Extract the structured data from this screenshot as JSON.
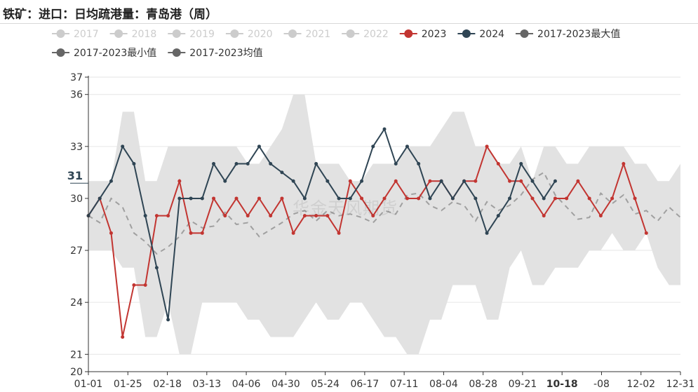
{
  "title": "铁矿：进口：日均疏港量：青岛港（周）",
  "watermark": "华金天风期货",
  "axis_pointer": {
    "y_label": "31",
    "x_label": "10-18"
  },
  "legend": [
    {
      "name": "2017",
      "color": "#cccccc",
      "active": false
    },
    {
      "name": "2018",
      "color": "#cccccc",
      "active": false
    },
    {
      "name": "2019",
      "color": "#cccccc",
      "active": false
    },
    {
      "name": "2020",
      "color": "#cccccc",
      "active": false
    },
    {
      "name": "2021",
      "color": "#cccccc",
      "active": false
    },
    {
      "name": "2022",
      "color": "#cccccc",
      "active": false
    },
    {
      "name": "2023",
      "color": "#c23531",
      "active": true
    },
    {
      "name": "2024",
      "color": "#2f4554",
      "active": true
    },
    {
      "name": "2017-2023最大值",
      "color": "#666666",
      "active": true
    },
    {
      "name": "2017-2023最小值",
      "color": "#666666",
      "active": true
    },
    {
      "name": "2017-2023均值",
      "color": "#666666",
      "active": true
    }
  ],
  "chart_data": {
    "type": "line",
    "title": "铁矿：进口：日均疏港量：青岛港（周）",
    "x_ticks": [
      "01-01",
      "01-25",
      "02-18",
      "03-13",
      "04-06",
      "04-30",
      "05-24",
      "06-17",
      "07-11",
      "08-04",
      "08-28",
      "09-21",
      "10-18",
      "-08",
      "12-02",
      "12-31"
    ],
    "ylim": [
      20,
      37
    ],
    "y_ticks": [
      20,
      21,
      24,
      27,
      30,
      33,
      36,
      37
    ],
    "grid": true,
    "legend_position": "top",
    "band": {
      "name_max": "2017-2023最大值",
      "name_min": "2017-2023最小值",
      "color": "#e2e2e2",
      "max": [
        31,
        31,
        31,
        35,
        35,
        31,
        31,
        33,
        33,
        33,
        33,
        33,
        33,
        33,
        32,
        32,
        33,
        34,
        36,
        36,
        32,
        32,
        32,
        31,
        31,
        32,
        32,
        32,
        33,
        33,
        33,
        34,
        35,
        35,
        33,
        33,
        32,
        32,
        33,
        31,
        33,
        33,
        32,
        32,
        33,
        33,
        33,
        33,
        32,
        32,
        31,
        31,
        32
      ],
      "min": [
        27,
        27,
        27,
        26,
        26,
        22,
        22,
        24,
        21,
        21,
        24,
        24,
        24,
        24,
        23,
        23,
        22,
        22,
        22,
        23,
        24,
        23,
        23,
        24,
        24,
        23,
        22,
        22,
        21,
        21,
        23,
        23,
        25,
        25,
        25,
        23,
        23,
        26,
        27,
        25,
        25,
        26,
        26,
        26,
        27,
        27,
        28,
        27,
        27,
        28,
        26,
        25,
        25
      ]
    },
    "series": [
      {
        "name": "2017-2023均值",
        "color": "#a0a0a0",
        "dashed": true,
        "values": [
          29,
          28.6,
          30,
          29.5,
          28,
          27.5,
          26.8,
          27.2,
          27.8,
          28.7,
          28.3,
          28.4,
          29.2,
          28.5,
          28.6,
          27.8,
          28.2,
          28.6,
          29.1,
          29.3,
          28.7,
          29.3,
          29.0,
          29.1,
          28.9,
          28.6,
          29.3,
          29.1,
          30.2,
          30.3,
          29.6,
          29.3,
          29.8,
          29.6,
          28.7,
          29.8,
          29.3,
          29.6,
          30.2,
          31.1,
          31.5,
          30.2,
          29.5,
          28.8,
          28.9,
          30.3,
          29.7,
          30.2,
          29.1,
          29.3,
          28.7,
          29.5,
          28.9
        ]
      },
      {
        "name": "2023",
        "color": "#c23531",
        "values": [
          29,
          30,
          28,
          22,
          25,
          25,
          29,
          29,
          31,
          28,
          28,
          30,
          29,
          30,
          29,
          30,
          29,
          30,
          28,
          29,
          29,
          29,
          28,
          31,
          30,
          29,
          30,
          31,
          30,
          30,
          31,
          31,
          30,
          31,
          31,
          33,
          32,
          31,
          31,
          30,
          29,
          30,
          30,
          31,
          30,
          29,
          30,
          32,
          30,
          28
        ]
      },
      {
        "name": "2024",
        "color": "#2f4554",
        "values": [
          29,
          30,
          31,
          33,
          32,
          29,
          26,
          23,
          30,
          30,
          30,
          32,
          31,
          32,
          32,
          33,
          32,
          31.5,
          31,
          30,
          32,
          31,
          30,
          30,
          31,
          33,
          34,
          32,
          33,
          32,
          30,
          31,
          30,
          31,
          30,
          28,
          29,
          30,
          32,
          31,
          30,
          31
        ]
      }
    ]
  }
}
